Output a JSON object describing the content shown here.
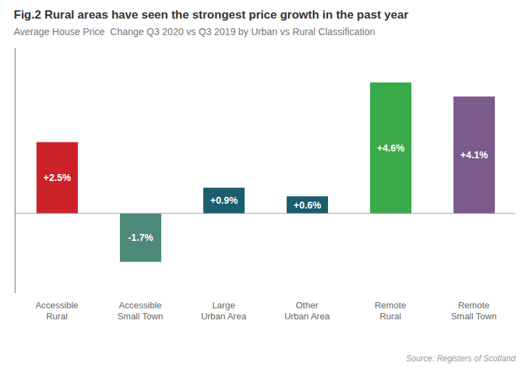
{
  "chart_data": {
    "type": "bar",
    "title": "Fig.2 Rural areas have seen the strongest price growth in the past year",
    "subtitle": "Average House Price  Change Q3 2020 vs Q3 2019 by Urban vs Rural Classification",
    "annotations": [
      "Source: Registers of Scotland"
    ],
    "categories": [
      "Accessible\nRural",
      "Accessible\nSmall Town",
      "Large\nUrban Area",
      "Other\nUrban Area",
      "Remote\nRural",
      "Remote\nSmall Town"
    ],
    "values": [
      2.5,
      -1.7,
      0.9,
      0.6,
      4.6,
      4.1
    ],
    "value_labels": [
      "+2.5%",
      "-1.7%",
      "+0.9%",
      "+0.6%",
      "+4.6%",
      "+4.1%"
    ],
    "data_labels": true,
    "colors": [
      "#cc2229",
      "#4d8a7a",
      "#1b5e6e",
      "#1b5e6e",
      "#3aaa4a",
      "#7b5b8c"
    ],
    "ylim": [
      -2.8,
      5.8
    ],
    "grid": false,
    "tick_labels": "x"
  }
}
